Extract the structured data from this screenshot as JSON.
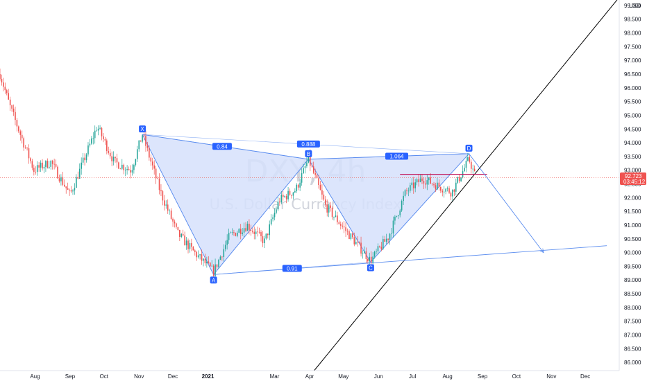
{
  "watermark": {
    "symbol": "DXY, 4h",
    "name": "U.S. Dollar Currency Index"
  },
  "colors": {
    "candle_up": "#26a69a",
    "candle_down": "#ef5350",
    "pattern_fill": "#d6e0fb",
    "pattern_line": "#5b8def",
    "label_bg": "#2962ff",
    "trendline": "#000000",
    "resistance": "#c2185b",
    "price_line": "#ef5350"
  },
  "price_axis": {
    "currency": "USD"
  },
  "current_price": {
    "value": "92.723",
    "countdown": "03:45:12"
  },
  "chart_data": {
    "type": "candlestick",
    "title": "",
    "xlabel": "",
    "ylabel": "",
    "x_ticks": [
      "Aug",
      "Sep",
      "Oct",
      "Nov",
      "Dec",
      "2021",
      "Mar",
      "Apr",
      "May",
      "Jun",
      "Jul",
      "Aug",
      "Sep",
      "Oct",
      "Nov",
      "Dec"
    ],
    "y_ticks": [
      "86.000",
      "86.500",
      "87.000",
      "87.500",
      "88.000",
      "88.500",
      "89.000",
      "89.500",
      "90.000",
      "90.500",
      "91.000",
      "91.500",
      "92.000",
      "92.500",
      "93.000",
      "93.500",
      "94.000",
      "94.500",
      "95.000",
      "95.500",
      "96.000",
      "96.500",
      "97.000",
      "97.500",
      "98.000",
      "98.500",
      "99.000"
    ],
    "ylim": [
      85.7,
      99.2
    ],
    "xlim": [
      "2020-07-01",
      "2021-12-31"
    ],
    "series": [
      {
        "x": [
          "2020-07-01",
          "2020-07-10",
          "2020-07-20",
          "2020-07-31",
          "2020-08-15",
          "2020-09-01",
          "2020-09-25",
          "2020-10-10",
          "2020-10-25",
          "2020-11-04",
          "2020-11-20",
          "2020-12-05",
          "2020-12-20",
          "2021-01-06",
          "2021-01-20",
          "2021-02-05",
          "2021-02-20",
          "2021-03-05",
          "2021-03-20",
          "2021-03-31",
          "2021-04-15",
          "2021-05-01",
          "2021-05-15",
          "2021-05-25",
          "2021-06-10",
          "2021-06-25",
          "2021-07-10",
          "2021-07-25",
          "2021-08-05",
          "2021-08-20",
          "2021-08-26"
        ],
        "y": [
          96.5,
          95.3,
          94.2,
          93.0,
          93.3,
          92.1,
          94.6,
          93.3,
          93.0,
          94.3,
          92.2,
          90.7,
          90.0,
          89.3,
          90.6,
          91.0,
          90.4,
          91.9,
          92.3,
          93.4,
          91.7,
          90.9,
          90.2,
          89.7,
          90.6,
          92.2,
          92.7,
          92.4,
          92.2,
          93.4,
          92.72
        ]
      }
    ],
    "harmonic_pattern": {
      "points": [
        {
          "label": "X",
          "date": "2020-11-04",
          "price": 94.3
        },
        {
          "label": "A",
          "date": "2021-01-06",
          "price": 89.2
        },
        {
          "label": "B",
          "date": "2021-03-31",
          "price": 93.4
        },
        {
          "label": "C",
          "date": "2021-05-25",
          "price": 89.65
        },
        {
          "label": "D",
          "date": "2021-08-20",
          "price": 93.6
        }
      ],
      "ratios": [
        "0.84",
        "0.888",
        "1.064",
        "0.91"
      ]
    },
    "trendline": {
      "from": {
        "date": "2021-04-05",
        "price": 85.7
      },
      "to": {
        "date": "2021-12-31",
        "price": 99.3
      }
    },
    "resistance": {
      "price": 92.85,
      "from": "2021-06-20",
      "to": "2021-09-05"
    },
    "projection": {
      "from": {
        "date": "2021-08-20",
        "price": 93.6
      },
      "to": {
        "date": "2021-10-25",
        "price": 90.0
      }
    },
    "support_line": {
      "from": {
        "date": "2021-01-06",
        "price": 89.2
      },
      "to": {
        "date": "2021-12-20",
        "price": 90.25
      }
    }
  }
}
